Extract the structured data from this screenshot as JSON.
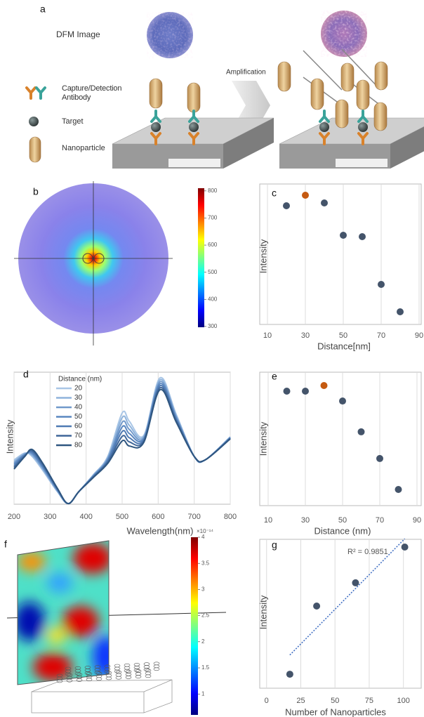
{
  "panel_labels": [
    "a",
    "b",
    "c",
    "d",
    "e",
    "f",
    "g"
  ],
  "figure_a": {
    "dfm_label": "DFM Image",
    "amplification_label": "Amplification",
    "legend": [
      "Capture/Detection Antibody",
      "Target",
      "Nanoparticle"
    ]
  },
  "colorbar_b": {
    "lim": [
      297,
      810
    ],
    "ticks": [
      300,
      400,
      500,
      600,
      700,
      800
    ]
  },
  "colorbar_f": {
    "exponent_label": "×10⁻¹⁴",
    "lim": [
      0.6,
      4
    ],
    "ticks": [
      1,
      1.5,
      2,
      2.5,
      3,
      3.5,
      4
    ]
  },
  "chart_data": [
    {
      "type": "scatter",
      "x_label": "Distance[nm]",
      "y_label": "Intensity",
      "x": [
        20,
        30,
        40,
        50,
        60,
        70,
        80
      ],
      "values": [
        84.5,
        92,
        86.5,
        63.5,
        62.5,
        28.5,
        9
      ],
      "colors": [
        "#44546a",
        "#c55a11",
        "#44546a",
        "#44546a",
        "#44546a",
        "#44546a",
        "#44546a"
      ],
      "xlim": [
        10,
        90
      ],
      "xticks": [
        10,
        30,
        50,
        70,
        90
      ],
      "ylim": [
        0,
        100
      ],
      "grid": true
    },
    {
      "type": "line",
      "x_label": "Wavelength(nm)",
      "y_label": "Intensity",
      "legend_title": "Distance (nm)",
      "x": [
        200,
        230,
        250,
        280,
        320,
        350,
        380,
        420,
        460,
        500,
        520,
        560,
        605,
        650,
        700,
        730,
        800
      ],
      "series": [
        {
          "name": "20",
          "color": "#a9c6e6",
          "values": [
            33.5,
            38.8,
            36.2,
            25.5,
            9.6,
            0.5,
            9.6,
            22.3,
            36.2,
            69.1,
            62.8,
            52.1,
            95.7,
            68.1,
            36.2,
            33.5,
            51.1
          ]
        },
        {
          "name": "30",
          "color": "#8fb3dc",
          "values": [
            32.3,
            38.4,
            37.1,
            26.4,
            10.0,
            0.5,
            9.6,
            22.0,
            35.3,
            65.6,
            59.7,
            51.2,
            94.2,
            67.1,
            36.2,
            33.5,
            50.8
          ]
        },
        {
          "name": "40",
          "color": "#7199cb",
          "values": [
            31.2,
            37.9,
            38.0,
            27.3,
            10.5,
            0.5,
            9.6,
            21.6,
            34.4,
            62.0,
            56.6,
            50.3,
            92.7,
            66.1,
            36.2,
            33.5,
            50.6
          ]
        },
        {
          "name": "50",
          "color": "#5a87c0",
          "values": [
            30.1,
            37.5,
            38.9,
            28.2,
            10.9,
            0.5,
            9.6,
            21.3,
            33.6,
            58.5,
            53.5,
            49.5,
            91.2,
            65.2,
            36.2,
            33.5,
            50.3
          ]
        },
        {
          "name": "60",
          "color": "#4f7ab3",
          "values": [
            28.9,
            37.1,
            39.7,
            29.1,
            11.3,
            0.5,
            9.6,
            20.9,
            32.7,
            55.0,
            50.3,
            48.6,
            89.7,
            64.2,
            36.2,
            33.5,
            50.0
          ]
        },
        {
          "name": "70",
          "color": "#3f6699",
          "values": [
            27.8,
            36.6,
            40.6,
            30.0,
            11.8,
            0.5,
            9.6,
            20.6,
            31.8,
            51.4,
            47.2,
            47.7,
            88.2,
            63.2,
            36.2,
            33.5,
            49.8
          ]
        },
        {
          "name": "80",
          "color": "#2f5680",
          "values": [
            26.6,
            36.2,
            41.5,
            30.9,
            12.2,
            0.5,
            9.6,
            20.2,
            30.9,
            47.9,
            44.1,
            46.8,
            86.7,
            62.2,
            36.2,
            33.5,
            49.5
          ]
        }
      ],
      "xlim": [
        200,
        800
      ],
      "xticks": [
        200,
        300,
        400,
        500,
        600,
        700,
        800
      ],
      "ylim": [
        0,
        100
      ],
      "grid": true
    },
    {
      "type": "scatter",
      "x_label": "Distance (nm)",
      "y_label": "Intensity",
      "x": [
        20,
        30,
        40,
        50,
        60,
        70,
        80
      ],
      "values": [
        85.8,
        85.8,
        90,
        78.4,
        55.3,
        35.3,
        12.1
      ],
      "colors": [
        "#44546a",
        "#44546a",
        "#c55a11",
        "#44546a",
        "#44546a",
        "#44546a",
        "#44546a"
      ],
      "xlim": [
        10,
        90
      ],
      "xticks": [
        10,
        30,
        50,
        70,
        90
      ],
      "ylim": [
        0,
        100
      ],
      "grid": true
    },
    {
      "type": "scatter",
      "x_label": "Number of Nanoparticles",
      "y_label": "Intensity",
      "x": [
        17,
        36.6,
        65,
        101
      ],
      "values": [
        9.4,
        55.2,
        70.8,
        94.8
      ],
      "color": "#44546a",
      "trendline": true,
      "annotation": "R² = 0.9851",
      "xlim": [
        -5,
        113
      ],
      "xticks": [
        0,
        25,
        50,
        75,
        100
      ],
      "ylim": [
        0,
        100
      ],
      "grid": true
    }
  ]
}
